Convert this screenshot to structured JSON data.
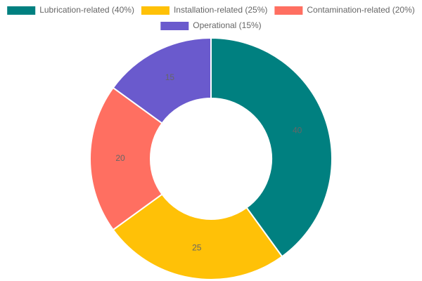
{
  "chart_data": {
    "type": "doughnut",
    "categories": [
      "Lubrication-related (40%)",
      "Installation-related (25%)",
      "Contamination-related (20%)",
      "Operational (15%)"
    ],
    "values": [
      40,
      25,
      20,
      15
    ],
    "colors": [
      "#008080",
      "#ffc107",
      "#ff6f61",
      "#6a5acd"
    ],
    "legend": "top"
  }
}
